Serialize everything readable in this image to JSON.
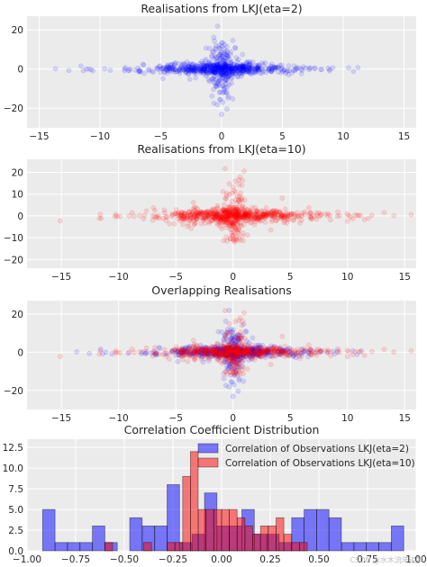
{
  "watermark": "CSDN @水木流年追梦",
  "colors": {
    "background": "#ebebeb",
    "grid": "#ffffff",
    "blue": "#0000ff",
    "red": "#ff0000",
    "text": "#262626"
  },
  "chart_data": [
    {
      "type": "scatter",
      "title": "Realisations from LKJ(eta=2)",
      "xlim": [
        -16,
        16
      ],
      "ylim": [
        -30,
        27
      ],
      "xticks": [
        -15,
        -10,
        -5,
        0,
        5,
        10,
        15
      ],
      "yticks": [
        -20,
        0,
        20
      ],
      "grid": true,
      "series": [
        {
          "color": "#0000ff",
          "alpha": 0.12,
          "n_points": 800,
          "seed": 11,
          "spread": {
            "x_sd_core": 2.2,
            "y_sd_core": 1.6,
            "x_extent": 15,
            "y_extent": 26
          }
        }
      ]
    },
    {
      "type": "scatter",
      "title": "Realisations from LKJ(eta=10)",
      "xlim": [
        -18,
        16
      ],
      "ylim": [
        -24,
        26
      ],
      "xticks": [
        -15,
        -10,
        -5,
        0,
        5,
        10,
        15
      ],
      "yticks": [
        -20,
        -10,
        0,
        10,
        20
      ],
      "grid": true,
      "series": [
        {
          "color": "#ff0000",
          "alpha": 0.12,
          "n_points": 800,
          "seed": 23,
          "spread": {
            "x_sd_core": 2.6,
            "y_sd_core": 1.8,
            "x_extent": 17,
            "y_extent": 25
          }
        }
      ]
    },
    {
      "type": "scatter",
      "title": "Overlapping Realisations",
      "xlim": [
        -18,
        16
      ],
      "ylim": [
        -30,
        27
      ],
      "xticks": [
        -15,
        -10,
        -5,
        0,
        5,
        10,
        15
      ],
      "yticks": [
        -20,
        0,
        20
      ],
      "grid": true,
      "series": [
        {
          "color": "#0000ff",
          "alpha": 0.12,
          "n_points": 650,
          "seed": 11,
          "spread": {
            "x_sd_core": 2.2,
            "y_sd_core": 1.6,
            "x_extent": 15,
            "y_extent": 26
          }
        },
        {
          "color": "#ff0000",
          "alpha": 0.12,
          "n_points": 650,
          "seed": 23,
          "spread": {
            "x_sd_core": 2.6,
            "y_sd_core": 1.8,
            "x_extent": 17,
            "y_extent": 25
          }
        }
      ]
    },
    {
      "type": "bar",
      "title": "Correlation Coefficient Distribution",
      "xlim": [
        -1.0,
        1.0
      ],
      "ylim": [
        0,
        13.5
      ],
      "xticks": [
        -1.0,
        -0.75,
        -0.5,
        -0.25,
        0.0,
        0.25,
        0.5,
        0.75,
        1.0
      ],
      "xtick_labels": [
        "−1.00",
        "−0.75",
        "−0.50",
        "−0.25",
        "0.00",
        "0.25",
        "0.50",
        "0.75",
        "1.00"
      ],
      "yticks": [
        0.0,
        2.5,
        5.0,
        7.5,
        10.0,
        12.5
      ],
      "ytick_labels": [
        "0.0",
        "2.5",
        "5.0",
        "7.5",
        "10.0",
        "12.5"
      ],
      "grid": true,
      "legend_position": "top-right",
      "series": [
        {
          "name": "Correlation of Observations LKJ(eta=2)",
          "color": "#0000ff",
          "alpha": 0.5,
          "bins": [
            [
              -0.92,
              -0.856,
              5
            ],
            [
              -0.856,
              -0.792,
              1
            ],
            [
              -0.792,
              -0.728,
              1
            ],
            [
              -0.728,
              -0.664,
              1
            ],
            [
              -0.664,
              -0.6,
              3
            ],
            [
              -0.6,
              -0.536,
              1
            ],
            [
              -0.536,
              -0.472,
              0
            ],
            [
              -0.472,
              -0.408,
              4
            ],
            [
              -0.408,
              -0.344,
              3
            ],
            [
              -0.344,
              -0.28,
              3
            ],
            [
              -0.28,
              -0.216,
              8
            ],
            [
              -0.216,
              -0.152,
              1
            ],
            [
              -0.152,
              -0.088,
              2
            ],
            [
              -0.088,
              -0.024,
              7
            ],
            [
              -0.024,
              0.04,
              3
            ],
            [
              0.04,
              0.104,
              3
            ],
            [
              0.104,
              0.168,
              5
            ],
            [
              0.168,
              0.232,
              2
            ],
            [
              0.232,
              0.296,
              2
            ],
            [
              0.296,
              0.36,
              1
            ],
            [
              0.36,
              0.424,
              4
            ],
            [
              0.424,
              0.488,
              5
            ],
            [
              0.488,
              0.552,
              5
            ],
            [
              0.552,
              0.616,
              4
            ],
            [
              0.616,
              0.68,
              1
            ],
            [
              0.68,
              0.744,
              1
            ],
            [
              0.744,
              0.808,
              1
            ],
            [
              0.808,
              0.872,
              1
            ],
            [
              0.872,
              0.936,
              3
            ]
          ]
        },
        {
          "name": "Correlation of Observations LKJ(eta=10)",
          "color": "#ff0000",
          "alpha": 0.5,
          "bins": [
            [
              -0.6,
              -0.56,
              1
            ],
            [
              -0.56,
              -0.52,
              0
            ],
            [
              -0.52,
              -0.48,
              0
            ],
            [
              -0.48,
              -0.44,
              0
            ],
            [
              -0.44,
              -0.4,
              0
            ],
            [
              -0.4,
              -0.36,
              1
            ],
            [
              -0.36,
              -0.32,
              0
            ],
            [
              -0.32,
              -0.28,
              0
            ],
            [
              -0.28,
              -0.24,
              1
            ],
            [
              -0.24,
              -0.2,
              1
            ],
            [
              -0.2,
              -0.16,
              0
            ],
            [
              -0.16,
              -0.12,
              4
            ],
            [
              -0.12,
              -0.08,
              5
            ],
            [
              -0.08,
              -0.04,
              5
            ],
            [
              -0.04,
              0.0,
              5
            ],
            [
              0.0,
              0.04,
              5
            ],
            [
              0.04,
              0.08,
              5
            ],
            [
              0.08,
              0.12,
              4
            ],
            [
              0.12,
              0.16,
              3
            ],
            [
              0.16,
              0.2,
              2
            ],
            [
              0.2,
              0.24,
              3
            ],
            [
              0.24,
              0.28,
              3
            ],
            [
              0.28,
              0.32,
              4
            ],
            [
              0.32,
              0.36,
              2
            ],
            [
              0.36,
              0.4,
              1
            ],
            [
              0.4,
              0.44,
              1
            ],
            [
              0.44,
              0.48,
              0
            ],
            [
              0.48,
              0.52,
              0
            ],
            [
              0.52,
              0.56,
              0
            ],
            [
              0.56,
              0.6,
              0
            ]
          ],
          "peak_bins": [
            [
              -0.2,
              -0.16,
              9
            ],
            [
              -0.16,
              -0.12,
              12
            ]
          ]
        }
      ]
    }
  ]
}
